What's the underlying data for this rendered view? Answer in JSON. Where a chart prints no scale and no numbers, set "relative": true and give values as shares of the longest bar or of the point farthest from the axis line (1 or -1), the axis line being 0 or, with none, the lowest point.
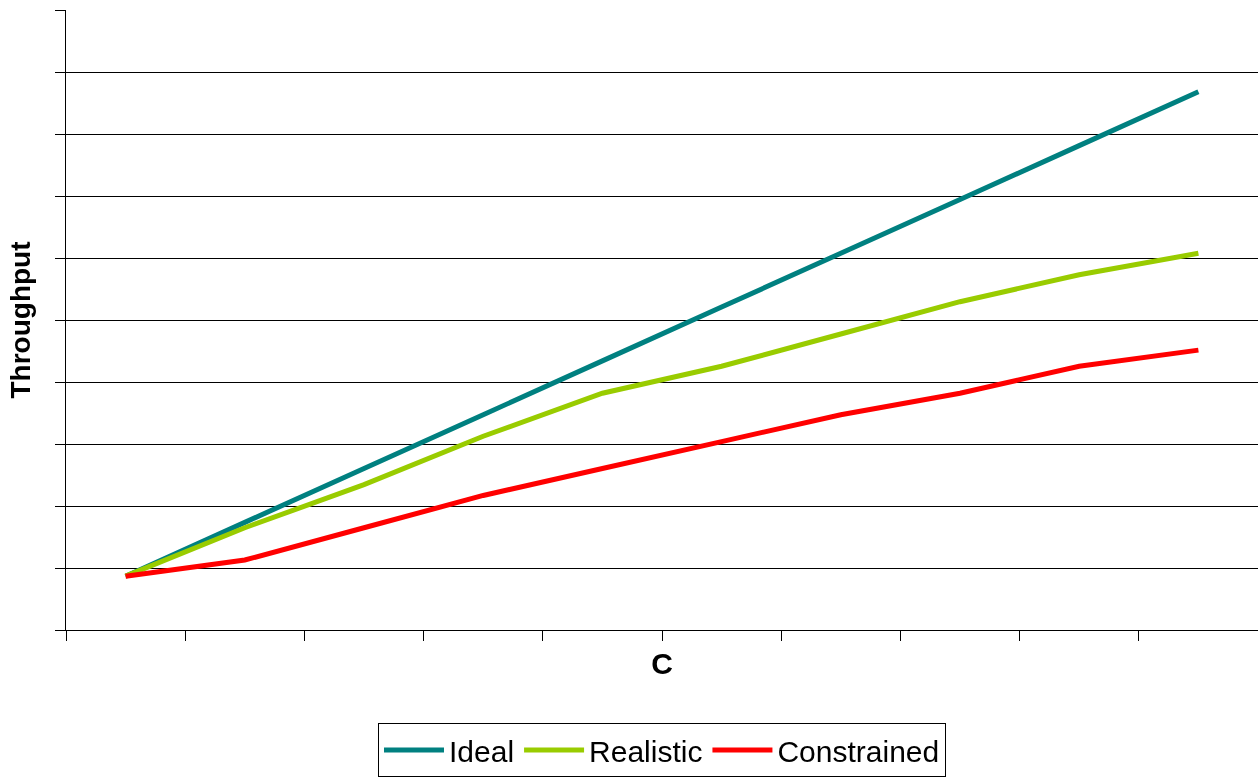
{
  "chart_data": {
    "type": "line",
    "relative": true,
    "xlabel": "C",
    "ylabel": "Throughput",
    "categories": [
      null,
      null,
      null,
      null,
      null,
      null,
      null,
      null,
      null,
      null
    ],
    "series": [
      {
        "name": "Ideal",
        "color": "#008080",
        "values": [
          0.1,
          0.2,
          0.3,
          0.4,
          0.5,
          0.6,
          0.7,
          0.8,
          0.9,
          1.0
        ]
      },
      {
        "name": "Realistic",
        "color": "#99cc00",
        "values": [
          0.1,
          0.19,
          0.27,
          0.36,
          0.44,
          0.49,
          0.55,
          0.61,
          0.66,
          0.7
        ]
      },
      {
        "name": "Constrained",
        "color": "#ff0000",
        "values": [
          0.1,
          0.13,
          0.19,
          0.25,
          0.3,
          0.35,
          0.4,
          0.44,
          0.49,
          0.52
        ]
      }
    ],
    "grid": "y",
    "legend": "bottom",
    "marker": "none",
    "line_style": "solid"
  }
}
